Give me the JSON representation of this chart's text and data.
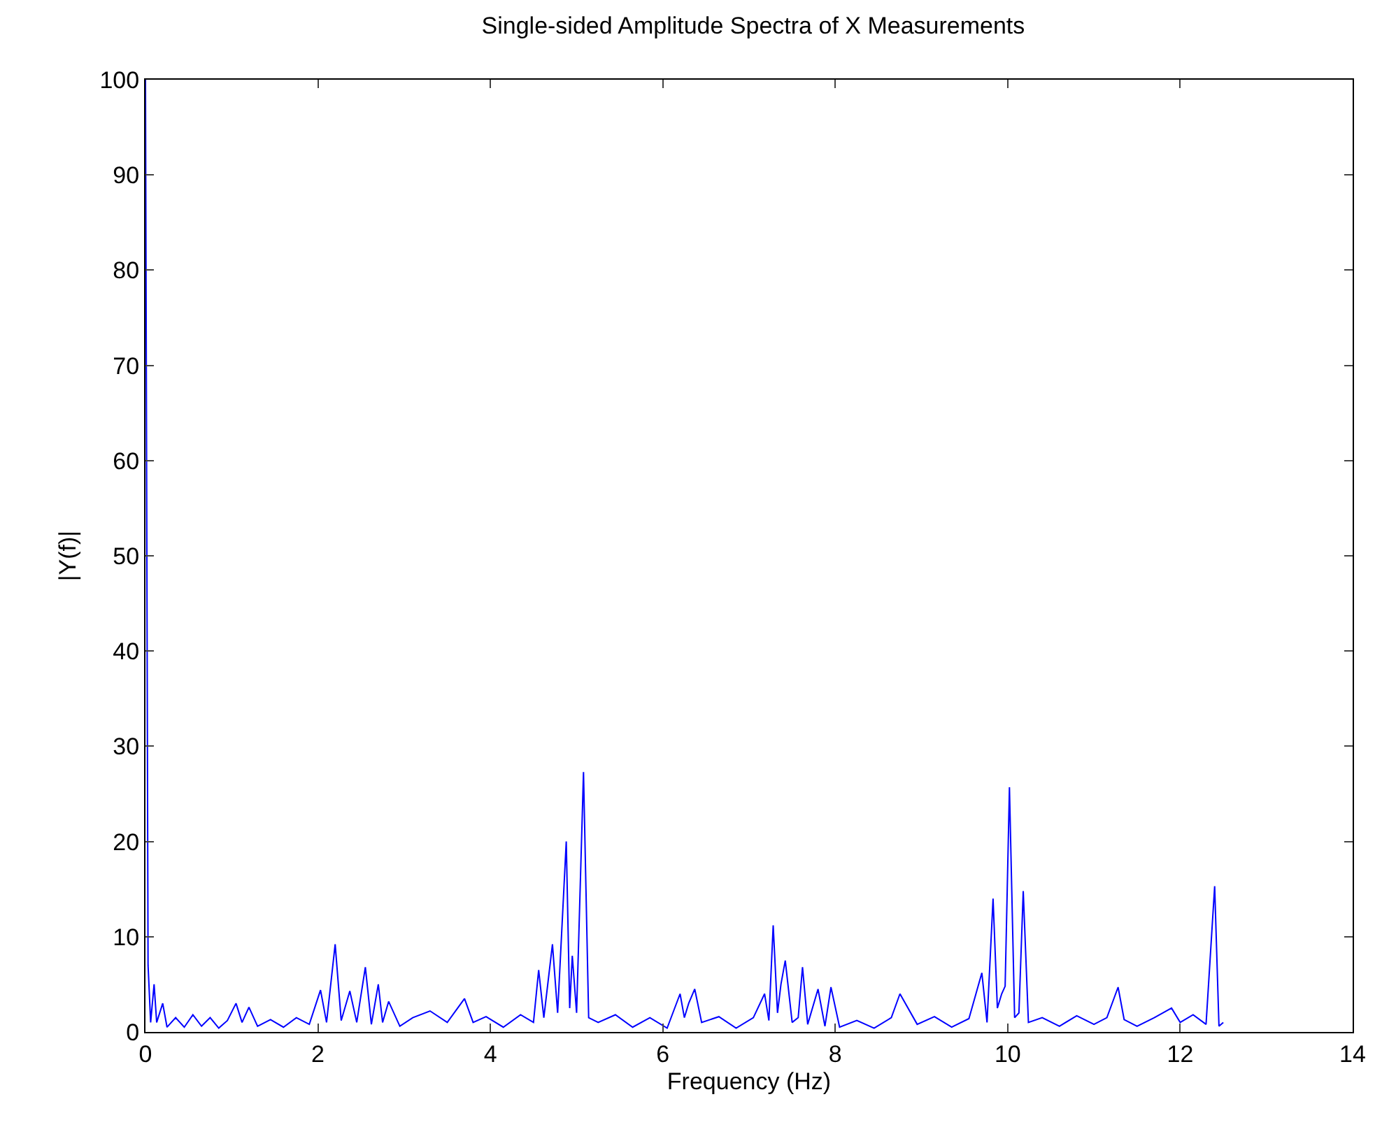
{
  "chart_data": {
    "type": "line",
    "title": "Single-sided Amplitude Spectra of X Measurements",
    "xlabel": "Frequency (Hz)",
    "ylabel": "|Y(f)|",
    "x": [
      0,
      0.03,
      0.06,
      0.1,
      0.13,
      0.2,
      0.25,
      0.35,
      0.45,
      0.55,
      0.65,
      0.75,
      0.85,
      0.95,
      1.05,
      1.12,
      1.2,
      1.3,
      1.45,
      1.6,
      1.75,
      1.9,
      2.03,
      2.1,
      2.2,
      2.27,
      2.37,
      2.45,
      2.55,
      2.62,
      2.7,
      2.75,
      2.82,
      2.95,
      3.1,
      3.3,
      3.5,
      3.7,
      3.8,
      3.95,
      4.15,
      4.35,
      4.5,
      4.56,
      4.62,
      4.72,
      4.78,
      4.88,
      4.92,
      4.95,
      5.0,
      5.08,
      5.14,
      5.25,
      5.45,
      5.65,
      5.85,
      6.05,
      6.2,
      6.25,
      6.3,
      6.37,
      6.45,
      6.65,
      6.85,
      7.05,
      7.18,
      7.23,
      7.28,
      7.33,
      7.37,
      7.42,
      7.5,
      7.57,
      7.62,
      7.68,
      7.8,
      7.88,
      7.95,
      8.05,
      8.25,
      8.45,
      8.65,
      8.75,
      8.95,
      9.15,
      9.35,
      9.55,
      9.7,
      9.76,
      9.83,
      9.88,
      9.93,
      9.97,
      10.02,
      10.08,
      10.13,
      10.18,
      10.24,
      10.4,
      10.6,
      10.8,
      11.0,
      11.15,
      11.28,
      11.35,
      11.5,
      11.7,
      11.9,
      12.0,
      12.15,
      12.3,
      12.4,
      12.45,
      12.5
    ],
    "series": [
      {
        "color": "#0000ff",
        "values": [
          100,
          7,
          1,
          5,
          1,
          3,
          0.5,
          1.5,
          0.5,
          1.8,
          0.6,
          1.5,
          0.4,
          1.2,
          3,
          1,
          2.6,
          0.6,
          1.3,
          0.5,
          1.5,
          0.8,
          4.4,
          1,
          9.2,
          1.2,
          4.3,
          1,
          6.8,
          0.8,
          5,
          1,
          3.2,
          0.6,
          1.5,
          2.2,
          1,
          3.5,
          1,
          1.6,
          0.5,
          1.8,
          1,
          6.5,
          1.5,
          9.2,
          2,
          20,
          2.5,
          8,
          2,
          27.3,
          1.5,
          1,
          1.8,
          0.5,
          1.5,
          0.4,
          4,
          1.5,
          3,
          4.5,
          1,
          1.6,
          0.4,
          1.5,
          4,
          1.2,
          11.2,
          2,
          5,
          7.5,
          1,
          1.5,
          6.8,
          0.8,
          4.5,
          0.6,
          4.7,
          0.5,
          1.2,
          0.4,
          1.5,
          4,
          0.8,
          1.6,
          0.5,
          1.4,
          6.2,
          1,
          14,
          2.5,
          4,
          4.8,
          25.7,
          1.5,
          2,
          14.8,
          1,
          1.5,
          0.6,
          1.7,
          0.8,
          1.5,
          4.7,
          1.3,
          0.6,
          1.5,
          2.5,
          1,
          1.8,
          0.8,
          15.3,
          0.6,
          1
        ]
      }
    ],
    "xlim": [
      0,
      14
    ],
    "xticks": [
      0,
      2,
      4,
      6,
      8,
      10,
      12,
      14
    ],
    "ylim": [
      0,
      100
    ],
    "yticks": [
      0,
      10,
      20,
      30,
      40,
      50,
      60,
      70,
      80,
      90,
      100
    ],
    "grid": false,
    "marker": "none",
    "line_style": "solid"
  }
}
